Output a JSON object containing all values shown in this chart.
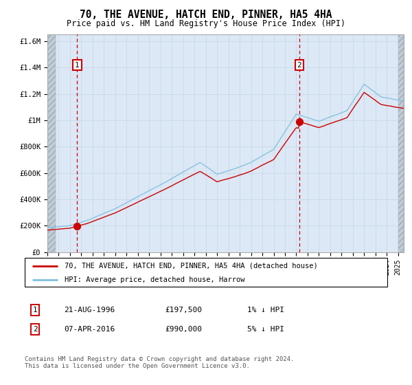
{
  "title": "70, THE AVENUE, HATCH END, PINNER, HA5 4HA",
  "subtitle": "Price paid vs. HM Land Registry's House Price Index (HPI)",
  "legend_line1": "70, THE AVENUE, HATCH END, PINNER, HA5 4HA (detached house)",
  "legend_line2": "HPI: Average price, detached house, Harrow",
  "annotation1_label": "1",
  "annotation1_date": "21-AUG-1996",
  "annotation1_price": "£197,500",
  "annotation1_hpi": "1% ↓ HPI",
  "annotation2_label": "2",
  "annotation2_date": "07-APR-2016",
  "annotation2_price": "£990,000",
  "annotation2_hpi": "5% ↓ HPI",
  "footer": "Contains HM Land Registry data © Crown copyright and database right 2024.\nThis data is licensed under the Open Government Licence v3.0.",
  "transaction1_year": 1996.64,
  "transaction1_value": 197500,
  "transaction2_year": 2016.27,
  "transaction2_value": 990000,
  "xmin": 1994.0,
  "xmax": 2025.5,
  "ymin": 0,
  "ymax": 1650000,
  "hpi_color": "#7fbfdf",
  "price_color": "#cc0000",
  "vline_color": "#cc0000",
  "grid_color": "#c8d8e8",
  "bg_color": "#dce8f5",
  "hatch_bg": "#c8d0d8",
  "note_color": "#555555"
}
